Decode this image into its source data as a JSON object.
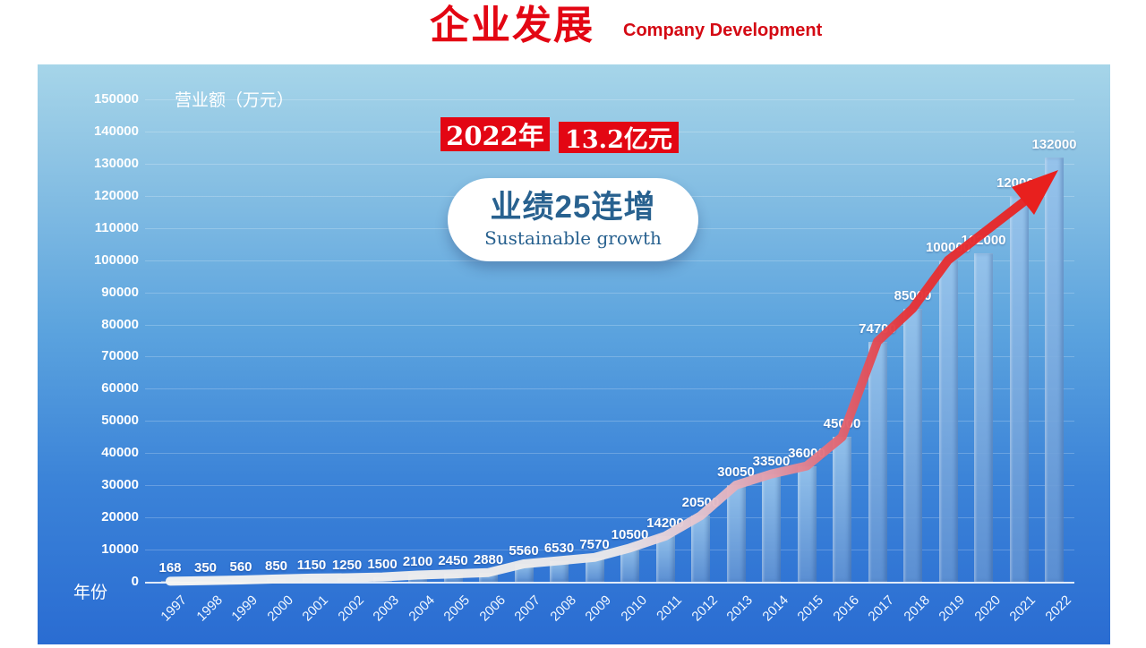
{
  "header": {
    "title": "企业发展",
    "subtitle": "Company Development"
  },
  "overlays": {
    "badge_year": "2022年",
    "badge_value": "13.2亿元",
    "pill_title": "业绩25连增",
    "pill_subtitle": "Sustainable growth"
  },
  "colors": {
    "title_red": "#e30613",
    "badge_bg": "#e30613",
    "panel_gradient_top": "#a6d5e9",
    "panel_gradient_bottom": "#2a6cd2",
    "bar_fill": "#6ea6dc",
    "arrow_start": "#f6f6f4",
    "arrow_mid_pink": "#e39aa8",
    "arrow_red": "#e8201e",
    "pill_text_blue": "#28618f",
    "axis_text": "#ffffff"
  },
  "chart_data": {
    "type": "bar",
    "title": "企业发展",
    "ylabel": "营业额（万元）",
    "xlabel": "年份",
    "categories": [
      "1997",
      "1998",
      "1999",
      "2000",
      "2001",
      "2002",
      "2003",
      "2004",
      "2005",
      "2006",
      "2007",
      "2008",
      "2009",
      "2010",
      "2011",
      "2012",
      "2013",
      "2014",
      "2015",
      "2016",
      "2017",
      "2018",
      "2019",
      "2020",
      "2021",
      "2022"
    ],
    "values": [
      168,
      350,
      560,
      850,
      1150,
      1250,
      1500,
      2100,
      2450,
      2880,
      5560,
      6530,
      7570,
      10500,
      14200,
      20500,
      30050,
      33500,
      36000,
      45000,
      74700,
      85000,
      100000,
      102000,
      120000,
      132000
    ],
    "ylim": [
      0,
      150000
    ],
    "ytick_step": 10000,
    "grid": true,
    "legend_position": "none",
    "annotations": [
      "2022年 13.2亿元",
      "业绩25连增 Sustainable growth"
    ],
    "trend_arrow": "white-to-red curved arrow riding on bar tops, red arrowhead at 2022"
  }
}
